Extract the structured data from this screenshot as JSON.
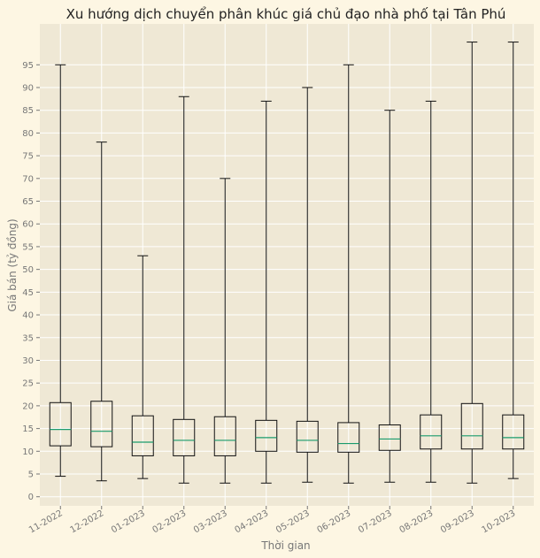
{
  "chart_data": {
    "type": "boxplot",
    "title": "Xu hướng dịch chuyển phân khúc giá chủ đạo nhà phố tại Tân Phú",
    "xlabel": "Thời gian",
    "ylabel": "Giá bán (tỷ đồng)",
    "ylim": [
      -2,
      104
    ],
    "yticks": [
      0,
      5,
      10,
      15,
      20,
      25,
      30,
      35,
      40,
      45,
      50,
      55,
      60,
      65,
      70,
      75,
      80,
      85,
      90,
      95
    ],
    "grid": true,
    "categories": [
      "11-2022",
      "12-2022",
      "01-2023",
      "02-2023",
      "03-2023",
      "04-2023",
      "05-2023",
      "06-2023",
      "07-2023",
      "08-2023",
      "09-2023",
      "10-2023"
    ],
    "series": [
      {
        "label": "11-2022",
        "min": 4.5,
        "q1": 11.2,
        "median": 14.8,
        "q3": 20.7,
        "max": 95
      },
      {
        "label": "12-2022",
        "min": 3.5,
        "q1": 11.0,
        "median": 14.4,
        "q3": 21.0,
        "max": 78
      },
      {
        "label": "01-2023",
        "min": 4.0,
        "q1": 9.0,
        "median": 12.0,
        "q3": 17.8,
        "max": 53
      },
      {
        "label": "02-2023",
        "min": 3.0,
        "q1": 9.0,
        "median": 12.4,
        "q3": 17.0,
        "max": 88
      },
      {
        "label": "03-2023",
        "min": 3.0,
        "q1": 9.0,
        "median": 12.4,
        "q3": 17.6,
        "max": 70
      },
      {
        "label": "04-2023",
        "min": 3.0,
        "q1": 10.0,
        "median": 13.0,
        "q3": 16.8,
        "max": 87
      },
      {
        "label": "05-2023",
        "min": 3.2,
        "q1": 9.8,
        "median": 12.4,
        "q3": 16.6,
        "max": 90
      },
      {
        "label": "06-2023",
        "min": 3.0,
        "q1": 9.8,
        "median": 11.7,
        "q3": 16.3,
        "max": 95
      },
      {
        "label": "07-2023",
        "min": 3.2,
        "q1": 10.2,
        "median": 12.7,
        "q3": 15.8,
        "max": 85
      },
      {
        "label": "08-2023",
        "min": 3.2,
        "q1": 10.5,
        "median": 13.4,
        "q3": 18.0,
        "max": 87
      },
      {
        "label": "09-2023",
        "min": 3.0,
        "q1": 10.5,
        "median": 13.4,
        "q3": 20.5,
        "max": 100
      },
      {
        "label": "10-2023",
        "min": 4.0,
        "q1": 10.5,
        "median": 13.0,
        "q3": 18.0,
        "max": 100
      }
    ],
    "colors": {
      "figure_bg": "#fdf6e3",
      "plot_bg": "#efe8d5",
      "grid": "#ffffff",
      "box": "#111111",
      "median": "#1a9b6c"
    }
  }
}
